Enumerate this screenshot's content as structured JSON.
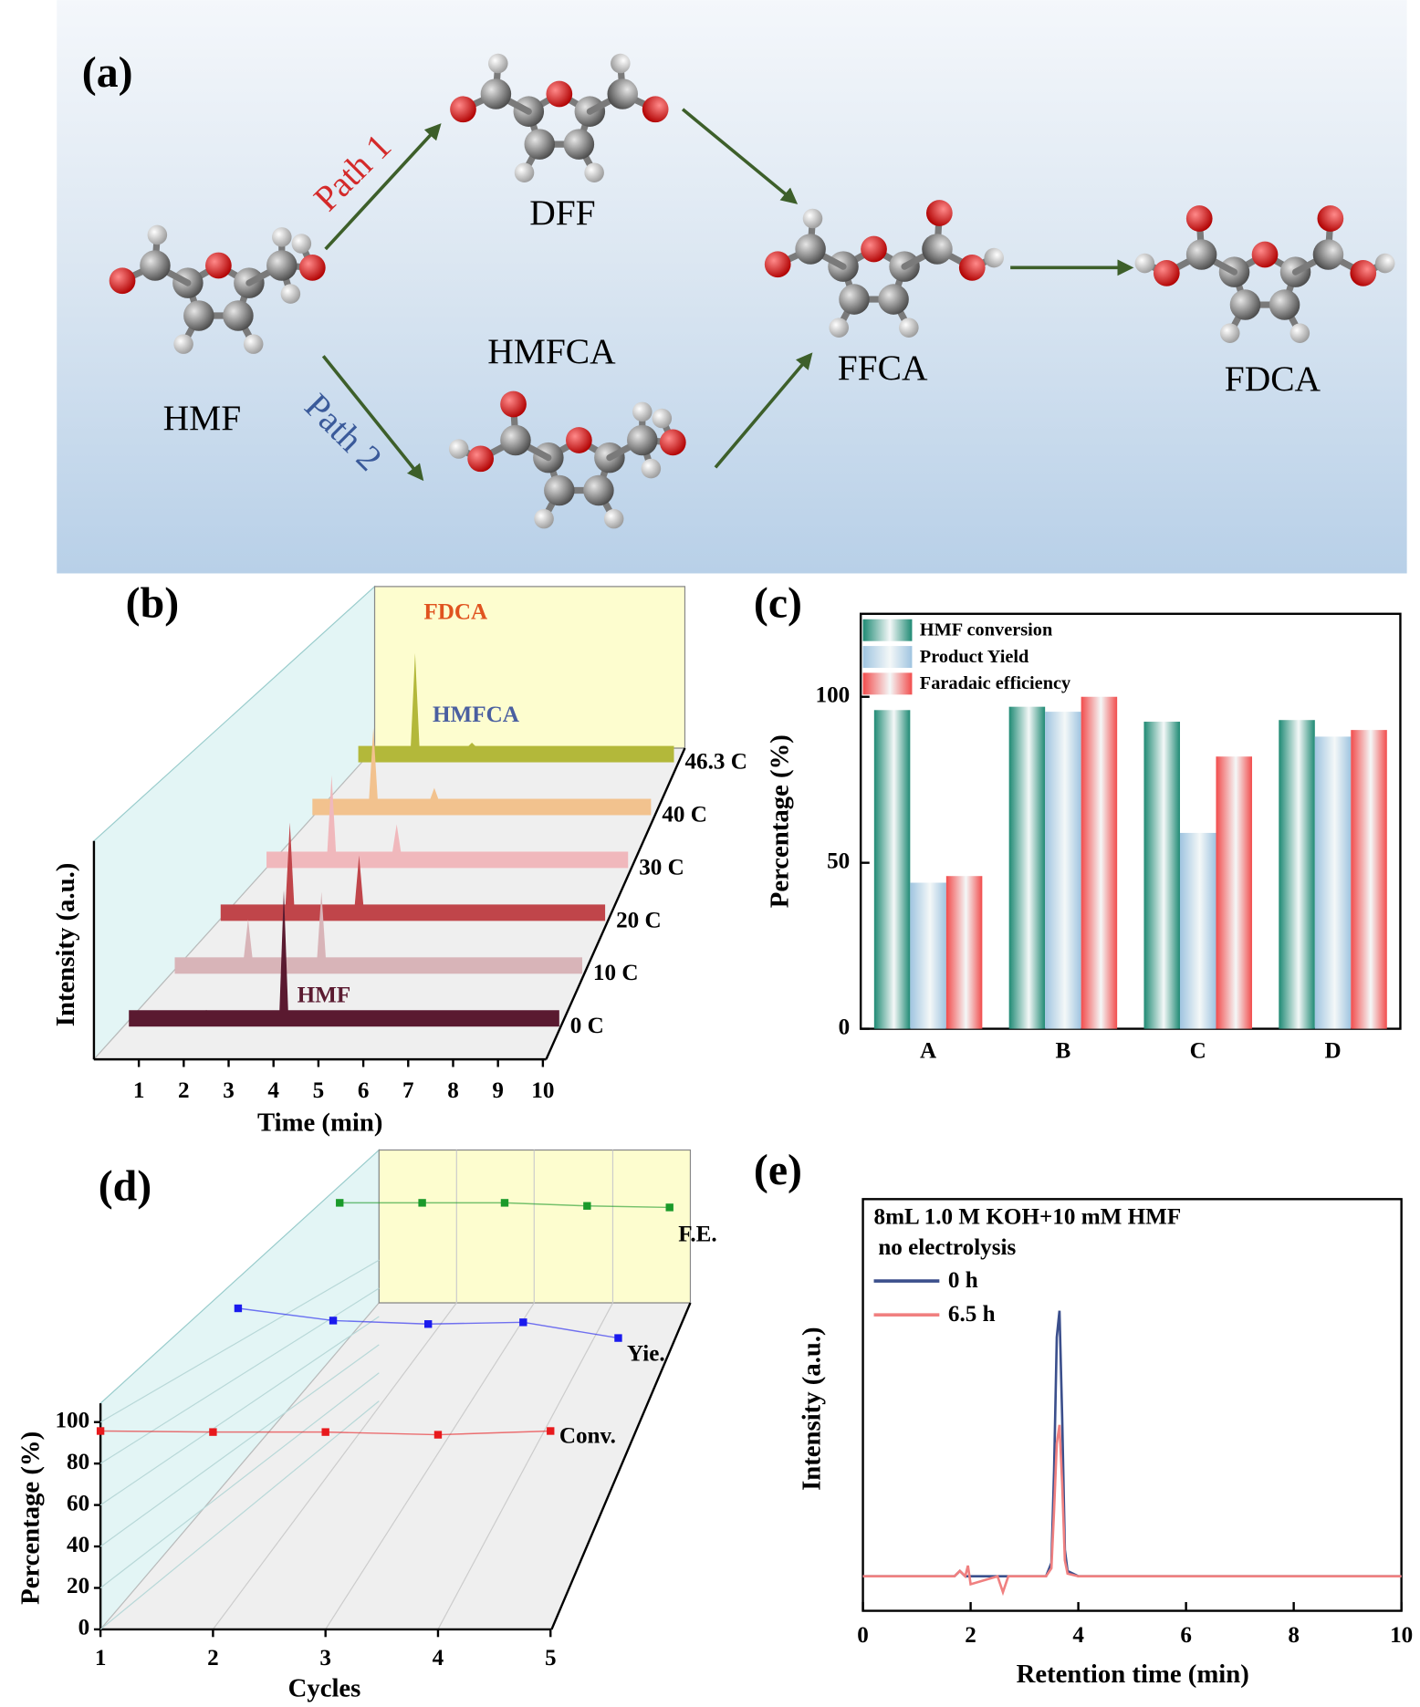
{
  "diagram": {
    "label": "(a)",
    "molecules": {
      "hmf": "HMF",
      "dff": "DFF",
      "hmfca": "HMFCA",
      "ffca": "FFCA",
      "fdca": "FDCA"
    },
    "paths": [
      "Path 1",
      "Path 2"
    ]
  },
  "chart_data": [
    {
      "type": "waterfall",
      "label": "(b)",
      "xlabel": "Time (min)",
      "ylabel": "Intensity (a.u.)",
      "xlim": [
        0,
        10
      ],
      "xticks": [
        1,
        2,
        3,
        4,
        5,
        6,
        7,
        8,
        9,
        10
      ],
      "ylim": [
        0,
        120
      ],
      "x": [
        1.8,
        3.6
      ],
      "series": [
        {
          "name": "0 C",
          "color": "#5a1a30",
          "values": [
            0,
            110
          ]
        },
        {
          "name": "10 C",
          "color": "#d8b4b8",
          "values": [
            35,
            60
          ]
        },
        {
          "name": "20 C",
          "color": "#c0454a",
          "values": [
            75,
            45
          ]
        },
        {
          "name": "30 C",
          "color": "#f0b8bc",
          "values": [
            70,
            25
          ]
        },
        {
          "name": "40 C",
          "color": "#f2c28e",
          "values": [
            65,
            10
          ]
        },
        {
          "name": "46.3 C",
          "color": "#b3b83a",
          "values": [
            85,
            3
          ]
        }
      ],
      "annotations": [
        {
          "text": "FDCA",
          "color": "#e0531f"
        },
        {
          "text": "HMFCA",
          "color": "#4a5fa0"
        },
        {
          "text": "HMF",
          "color": "#5a1a30"
        }
      ]
    },
    {
      "type": "bar",
      "label": "(c)",
      "ylabel": "Percentage (%)",
      "categories": [
        "A",
        "B",
        "C",
        "D"
      ],
      "ylim": [
        0,
        125
      ],
      "yticks": [
        0,
        50,
        100
      ],
      "series": [
        {
          "name": "HMF conversion",
          "color": "#1f8a74",
          "values": [
            96,
            97,
            92.5,
            93
          ]
        },
        {
          "name": "Product Yield",
          "color": "#9fc4e0",
          "values": [
            44,
            95.5,
            59,
            88
          ]
        },
        {
          "name": "Faradaic efficiency",
          "color": "#f24c4c",
          "values": [
            46,
            100,
            82,
            90
          ]
        }
      ]
    },
    {
      "type": "line3d",
      "label": "(d)",
      "xlabel": "Cycles",
      "ylabel": "Percentage (%)",
      "x": [
        1,
        2,
        3,
        4,
        5
      ],
      "xlim": [
        1,
        5
      ],
      "xticks": [
        1,
        2,
        3,
        4,
        5
      ],
      "ylim": [
        0,
        108
      ],
      "yticks": [
        0,
        20,
        40,
        60,
        80,
        100
      ],
      "series": [
        {
          "name": "Conv.",
          "color": "#e8191c",
          "values": [
            95.7,
            95.2,
            95.2,
            93.9,
            95.7
          ]
        },
        {
          "name": "Yie.",
          "color": "#1a1aee",
          "values": [
            95,
            88,
            86,
            87,
            78
          ]
        },
        {
          "name": "F.E.",
          "color": "#1a9a2a",
          "values": [
            99,
            99,
            99,
            97,
            96
          ]
        }
      ]
    },
    {
      "type": "line",
      "label": "(e)",
      "xlabel": "Retention time (min)",
      "ylabel": "Intensity (a.u.)",
      "legend_title": [
        "8mL 1.0 M KOH+10 mM HMF",
        "no electrolysis"
      ],
      "x": [
        0,
        1.7,
        1.8,
        1.9,
        1.95,
        2.0,
        2.5,
        2.6,
        2.7,
        3.4,
        3.5,
        3.55,
        3.6,
        3.65,
        3.7,
        3.75,
        3.8,
        4.0,
        6,
        8,
        10
      ],
      "xlim": [
        0,
        10
      ],
      "xticks": [
        0,
        2,
        4,
        6,
        8,
        10
      ],
      "ylim": [
        -13,
        142
      ],
      "series": [
        {
          "name": "0 h",
          "color": "#3b4f8c",
          "values": [
            0,
            0,
            2,
            0,
            0,
            0,
            0,
            0,
            0,
            0,
            5,
            40,
            90,
            100,
            60,
            10,
            2,
            0,
            0,
            0,
            0
          ]
        },
        {
          "name": "6.5 h",
          "color": "#f08080",
          "values": [
            0,
            0,
            2,
            0,
            4,
            -3,
            0,
            -6,
            0,
            0,
            3,
            25,
            50,
            57,
            35,
            6,
            1,
            0,
            0,
            0,
            0
          ]
        }
      ]
    }
  ]
}
